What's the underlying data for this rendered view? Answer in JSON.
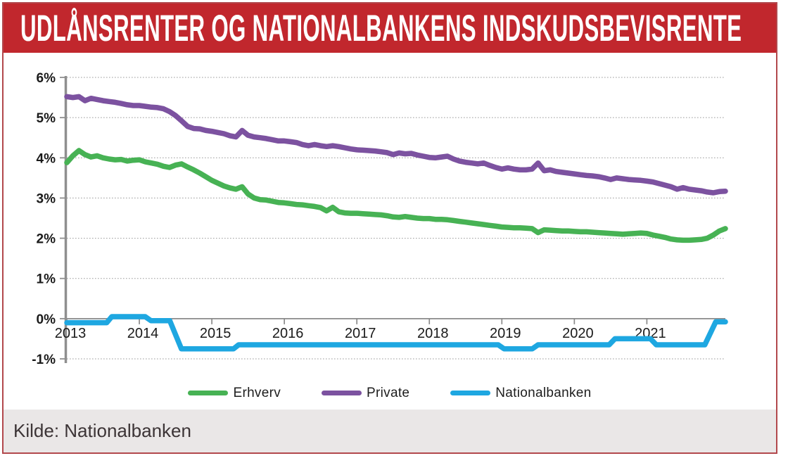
{
  "header": {
    "title": "UDLÅNSRENTER OG NATIONALBANKENS INDSKUDSBEVISRENTE"
  },
  "footer": {
    "source": "Kilde: Nationalbanken"
  },
  "colors": {
    "header_bg": "#c1272d",
    "header_text": "#ffffff",
    "frame_border": "#b2484c",
    "footer_bg": "#eae7e7",
    "axis": "#8f8f8f",
    "zero_line": "#8a8a8a",
    "grid": "#9b9b9b",
    "tick_label": "#1a1a1a",
    "erhverv": "#47b254",
    "private": "#7c52a0",
    "nationalbanken": "#1ea7e1"
  },
  "chart_data": {
    "type": "line",
    "title": "UDLÅNSRENTER OG NATIONALBANKENS INDSKUDSBEVISRENTE",
    "xlabel": "",
    "ylabel": "",
    "grid": "horizontal-dotted",
    "legend_position": "bottom",
    "x_axis": {
      "range": [
        2013,
        2022.083
      ],
      "ticks": [
        2013,
        2014,
        2015,
        2016,
        2017,
        2018,
        2019,
        2020,
        2021
      ],
      "labels": [
        "2013",
        "2014",
        "2015",
        "2016",
        "2017",
        "2018",
        "2019",
        "2020",
        "2021"
      ]
    },
    "y_axis": {
      "range": [
        -1,
        6
      ],
      "ticks": [
        6,
        5,
        4,
        3,
        2,
        1,
        0,
        -1
      ],
      "labels": [
        "6%",
        "5%",
        "4%",
        "3%",
        "2%",
        "1%",
        "0%",
        "-1%"
      ],
      "zero_line": true
    },
    "series": [
      {
        "name": "Erhverv",
        "color": "#47b254",
        "points": [
          [
            2013.0,
            3.88
          ],
          [
            2013.083,
            4.05
          ],
          [
            2013.167,
            4.18
          ],
          [
            2013.25,
            4.08
          ],
          [
            2013.333,
            4.02
          ],
          [
            2013.417,
            4.05
          ],
          [
            2013.5,
            4.0
          ],
          [
            2013.583,
            3.97
          ],
          [
            2013.667,
            3.95
          ],
          [
            2013.75,
            3.96
          ],
          [
            2013.833,
            3.92
          ],
          [
            2013.917,
            3.94
          ],
          [
            2014.0,
            3.95
          ],
          [
            2014.083,
            3.9
          ],
          [
            2014.167,
            3.87
          ],
          [
            2014.25,
            3.84
          ],
          [
            2014.333,
            3.79
          ],
          [
            2014.417,
            3.76
          ],
          [
            2014.5,
            3.82
          ],
          [
            2014.583,
            3.85
          ],
          [
            2014.667,
            3.77
          ],
          [
            2014.75,
            3.7
          ],
          [
            2014.833,
            3.62
          ],
          [
            2014.917,
            3.53
          ],
          [
            2015.0,
            3.44
          ],
          [
            2015.083,
            3.37
          ],
          [
            2015.167,
            3.3
          ],
          [
            2015.25,
            3.25
          ],
          [
            2015.333,
            3.22
          ],
          [
            2015.417,
            3.28
          ],
          [
            2015.5,
            3.1
          ],
          [
            2015.583,
            3.0
          ],
          [
            2015.667,
            2.96
          ],
          [
            2015.75,
            2.95
          ],
          [
            2015.833,
            2.92
          ],
          [
            2015.917,
            2.89
          ],
          [
            2016.0,
            2.88
          ],
          [
            2016.083,
            2.86
          ],
          [
            2016.167,
            2.84
          ],
          [
            2016.25,
            2.83
          ],
          [
            2016.333,
            2.81
          ],
          [
            2016.417,
            2.79
          ],
          [
            2016.5,
            2.76
          ],
          [
            2016.583,
            2.68
          ],
          [
            2016.667,
            2.77
          ],
          [
            2016.75,
            2.66
          ],
          [
            2016.833,
            2.63
          ],
          [
            2016.917,
            2.62
          ],
          [
            2017.0,
            2.62
          ],
          [
            2017.083,
            2.61
          ],
          [
            2017.167,
            2.6
          ],
          [
            2017.25,
            2.59
          ],
          [
            2017.333,
            2.58
          ],
          [
            2017.417,
            2.56
          ],
          [
            2017.5,
            2.53
          ],
          [
            2017.583,
            2.52
          ],
          [
            2017.667,
            2.54
          ],
          [
            2017.75,
            2.52
          ],
          [
            2017.833,
            2.5
          ],
          [
            2017.917,
            2.49
          ],
          [
            2018.0,
            2.49
          ],
          [
            2018.083,
            2.47
          ],
          [
            2018.167,
            2.47
          ],
          [
            2018.25,
            2.46
          ],
          [
            2018.333,
            2.44
          ],
          [
            2018.417,
            2.42
          ],
          [
            2018.5,
            2.4
          ],
          [
            2018.583,
            2.38
          ],
          [
            2018.667,
            2.36
          ],
          [
            2018.75,
            2.34
          ],
          [
            2018.833,
            2.32
          ],
          [
            2018.917,
            2.3
          ],
          [
            2019.0,
            2.28
          ],
          [
            2019.083,
            2.27
          ],
          [
            2019.167,
            2.26
          ],
          [
            2019.25,
            2.26
          ],
          [
            2019.333,
            2.25
          ],
          [
            2019.417,
            2.24
          ],
          [
            2019.5,
            2.14
          ],
          [
            2019.583,
            2.21
          ],
          [
            2019.667,
            2.2
          ],
          [
            2019.75,
            2.19
          ],
          [
            2019.833,
            2.18
          ],
          [
            2019.917,
            2.18
          ],
          [
            2020.0,
            2.17
          ],
          [
            2020.083,
            2.16
          ],
          [
            2020.167,
            2.16
          ],
          [
            2020.25,
            2.15
          ],
          [
            2020.333,
            2.14
          ],
          [
            2020.417,
            2.13
          ],
          [
            2020.5,
            2.12
          ],
          [
            2020.583,
            2.11
          ],
          [
            2020.667,
            2.1
          ],
          [
            2020.75,
            2.11
          ],
          [
            2020.833,
            2.12
          ],
          [
            2020.917,
            2.13
          ],
          [
            2021.0,
            2.12
          ],
          [
            2021.083,
            2.08
          ],
          [
            2021.167,
            2.05
          ],
          [
            2021.25,
            2.02
          ],
          [
            2021.333,
            1.98
          ],
          [
            2021.417,
            1.96
          ],
          [
            2021.5,
            1.95
          ],
          [
            2021.583,
            1.95
          ],
          [
            2021.667,
            1.96
          ],
          [
            2021.75,
            1.97
          ],
          [
            2021.833,
            2.0
          ],
          [
            2021.917,
            2.08
          ],
          [
            2022.0,
            2.18
          ],
          [
            2022.083,
            2.24
          ]
        ]
      },
      {
        "name": "Private",
        "color": "#7c52a0",
        "points": [
          [
            2013.0,
            5.52
          ],
          [
            2013.083,
            5.5
          ],
          [
            2013.167,
            5.52
          ],
          [
            2013.25,
            5.42
          ],
          [
            2013.333,
            5.48
          ],
          [
            2013.417,
            5.45
          ],
          [
            2013.5,
            5.42
          ],
          [
            2013.583,
            5.4
          ],
          [
            2013.667,
            5.38
          ],
          [
            2013.75,
            5.35
          ],
          [
            2013.833,
            5.32
          ],
          [
            2013.917,
            5.3
          ],
          [
            2014.0,
            5.3
          ],
          [
            2014.083,
            5.28
          ],
          [
            2014.167,
            5.26
          ],
          [
            2014.25,
            5.25
          ],
          [
            2014.333,
            5.22
          ],
          [
            2014.417,
            5.15
          ],
          [
            2014.5,
            5.05
          ],
          [
            2014.583,
            4.92
          ],
          [
            2014.667,
            4.78
          ],
          [
            2014.75,
            4.73
          ],
          [
            2014.833,
            4.72
          ],
          [
            2014.917,
            4.68
          ],
          [
            2015.0,
            4.66
          ],
          [
            2015.083,
            4.63
          ],
          [
            2015.167,
            4.6
          ],
          [
            2015.25,
            4.55
          ],
          [
            2015.333,
            4.52
          ],
          [
            2015.417,
            4.68
          ],
          [
            2015.5,
            4.56
          ],
          [
            2015.583,
            4.52
          ],
          [
            2015.667,
            4.5
          ],
          [
            2015.75,
            4.48
          ],
          [
            2015.833,
            4.45
          ],
          [
            2015.917,
            4.42
          ],
          [
            2016.0,
            4.42
          ],
          [
            2016.083,
            4.4
          ],
          [
            2016.167,
            4.38
          ],
          [
            2016.25,
            4.33
          ],
          [
            2016.333,
            4.3
          ],
          [
            2016.417,
            4.33
          ],
          [
            2016.5,
            4.3
          ],
          [
            2016.583,
            4.28
          ],
          [
            2016.667,
            4.3
          ],
          [
            2016.75,
            4.28
          ],
          [
            2016.833,
            4.25
          ],
          [
            2016.917,
            4.22
          ],
          [
            2017.0,
            4.2
          ],
          [
            2017.083,
            4.19
          ],
          [
            2017.167,
            4.18
          ],
          [
            2017.25,
            4.17
          ],
          [
            2017.333,
            4.15
          ],
          [
            2017.417,
            4.13
          ],
          [
            2017.5,
            4.08
          ],
          [
            2017.583,
            4.12
          ],
          [
            2017.667,
            4.1
          ],
          [
            2017.75,
            4.11
          ],
          [
            2017.833,
            4.07
          ],
          [
            2017.917,
            4.04
          ],
          [
            2018.0,
            4.01
          ],
          [
            2018.083,
            4.0
          ],
          [
            2018.167,
            4.02
          ],
          [
            2018.25,
            4.04
          ],
          [
            2018.333,
            3.97
          ],
          [
            2018.417,
            3.92
          ],
          [
            2018.5,
            3.89
          ],
          [
            2018.583,
            3.87
          ],
          [
            2018.667,
            3.85
          ],
          [
            2018.75,
            3.87
          ],
          [
            2018.833,
            3.81
          ],
          [
            2018.917,
            3.76
          ],
          [
            2019.0,
            3.72
          ],
          [
            2019.083,
            3.75
          ],
          [
            2019.167,
            3.72
          ],
          [
            2019.25,
            3.7
          ],
          [
            2019.333,
            3.7
          ],
          [
            2019.417,
            3.72
          ],
          [
            2019.5,
            3.87
          ],
          [
            2019.583,
            3.68
          ],
          [
            2019.667,
            3.7
          ],
          [
            2019.75,
            3.66
          ],
          [
            2019.833,
            3.64
          ],
          [
            2019.917,
            3.62
          ],
          [
            2020.0,
            3.6
          ],
          [
            2020.083,
            3.58
          ],
          [
            2020.167,
            3.56
          ],
          [
            2020.25,
            3.55
          ],
          [
            2020.333,
            3.53
          ],
          [
            2020.417,
            3.5
          ],
          [
            2020.5,
            3.46
          ],
          [
            2020.583,
            3.5
          ],
          [
            2020.667,
            3.48
          ],
          [
            2020.75,
            3.46
          ],
          [
            2020.833,
            3.45
          ],
          [
            2020.917,
            3.44
          ],
          [
            2021.0,
            3.42
          ],
          [
            2021.083,
            3.4
          ],
          [
            2021.167,
            3.36
          ],
          [
            2021.25,
            3.32
          ],
          [
            2021.333,
            3.28
          ],
          [
            2021.417,
            3.22
          ],
          [
            2021.5,
            3.26
          ],
          [
            2021.583,
            3.22
          ],
          [
            2021.667,
            3.2
          ],
          [
            2021.75,
            3.18
          ],
          [
            2021.833,
            3.15
          ],
          [
            2021.917,
            3.13
          ],
          [
            2022.0,
            3.16
          ],
          [
            2022.083,
            3.17
          ]
        ]
      },
      {
        "name": "Nationalbanken",
        "color": "#1ea7e1",
        "points": [
          [
            2013.0,
            -0.1
          ],
          [
            2013.55,
            -0.1
          ],
          [
            2013.62,
            0.05
          ],
          [
            2014.08,
            0.05
          ],
          [
            2014.16,
            -0.05
          ],
          [
            2014.42,
            -0.05
          ],
          [
            2014.58,
            -0.75
          ],
          [
            2015.3,
            -0.75
          ],
          [
            2015.37,
            -0.65
          ],
          [
            2018.95,
            -0.65
          ],
          [
            2019.03,
            -0.75
          ],
          [
            2019.42,
            -0.75
          ],
          [
            2019.5,
            -0.65
          ],
          [
            2020.48,
            -0.65
          ],
          [
            2020.56,
            -0.5
          ],
          [
            2021.05,
            -0.5
          ],
          [
            2021.13,
            -0.65
          ],
          [
            2021.8,
            -0.65
          ],
          [
            2021.95,
            -0.08
          ],
          [
            2022.083,
            -0.08
          ]
        ]
      }
    ]
  }
}
